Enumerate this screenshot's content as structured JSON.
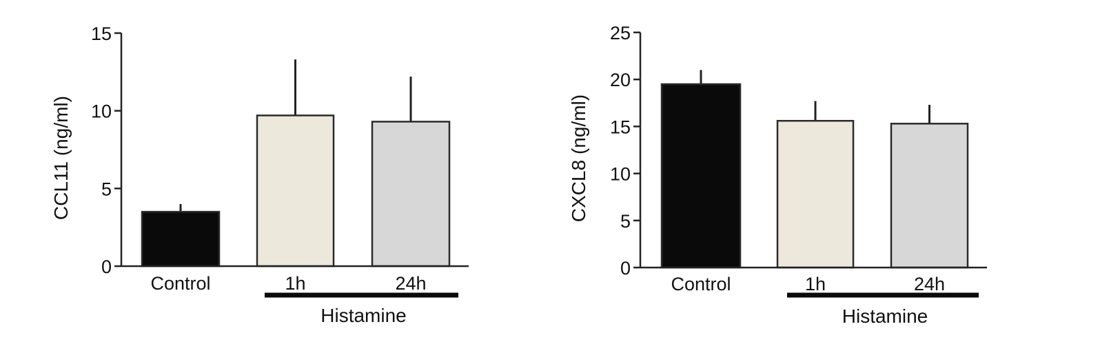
{
  "chart_data": [
    {
      "type": "bar",
      "ylabel": "CCL11 (ng/ml)",
      "ylim": [
        0,
        15
      ],
      "yticks": [
        0,
        5,
        10,
        15
      ],
      "categories": [
        "Control",
        "1h",
        "24h"
      ],
      "values": [
        3.5,
        9.7,
        9.3
      ],
      "error": [
        0.5,
        3.6,
        2.9
      ],
      "colors": [
        "#0a0a0a",
        "#ece9dc",
        "#d7d7d7"
      ],
      "group": {
        "label": "Histamine",
        "categories": [
          "1h",
          "24h"
        ]
      }
    },
    {
      "type": "bar",
      "ylabel": "CXCL8 (ng/ml)",
      "ylim": [
        0,
        25
      ],
      "yticks": [
        0,
        5,
        10,
        15,
        20,
        25
      ],
      "categories": [
        "Control",
        "1h",
        "24h"
      ],
      "values": [
        19.5,
        15.6,
        15.3
      ],
      "error": [
        1.5,
        2.1,
        2.0
      ],
      "colors": [
        "#0a0a0a",
        "#ece9dc",
        "#d7d7d7"
      ],
      "group": {
        "label": "Histamine",
        "categories": [
          "1h",
          "24h"
        ]
      }
    }
  ]
}
